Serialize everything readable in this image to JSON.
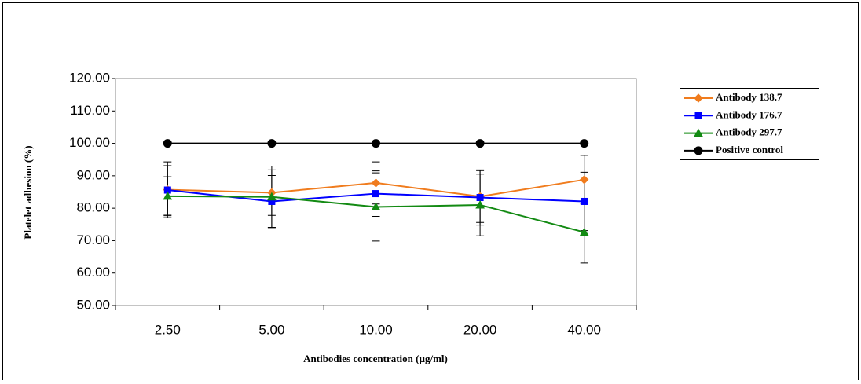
{
  "chart_data": {
    "type": "line",
    "x_label": "Antibodies concentration (µg/ml)",
    "y_label": "Platelet adhesion (%)",
    "categories": [
      "2.50",
      "5.00",
      "10.00",
      "20.00",
      "40.00"
    ],
    "series": [
      {
        "name": "Antibody 138.7",
        "color": "#f07c1e",
        "marker": "diamond",
        "values": [
          85.7,
          84.8,
          87.8,
          83.6,
          88.8
        ],
        "errors": [
          8.6,
          7.0,
          6.5,
          8.0,
          7.5
        ]
      },
      {
        "name": "Antibody 176.7",
        "color": "#0000ff",
        "marker": "square",
        "values": [
          85.6,
          82.1,
          84.5,
          83.3,
          82.1
        ],
        "errors": [
          7.5,
          8.0,
          7.0,
          8.5,
          9.0
        ]
      },
      {
        "name": "Antibody 297.7",
        "color": "#138a13",
        "marker": "triangle",
        "values": [
          83.7,
          83.5,
          80.4,
          81.0,
          72.6
        ],
        "errors": [
          6.0,
          9.5,
          10.5,
          9.5,
          9.5
        ]
      },
      {
        "name": "Positive control",
        "color": "#000000",
        "marker": "circle",
        "values": [
          100,
          100,
          100,
          100,
          100
        ]
      }
    ],
    "ylim": [
      50,
      120
    ],
    "yticks": [
      {
        "value": 50,
        "label": "50.00"
      },
      {
        "value": 60,
        "label": "60.00"
      },
      {
        "value": 70,
        "label": "70.00"
      },
      {
        "value": 80,
        "label": "80.00"
      },
      {
        "value": 90,
        "label": "90.00"
      },
      {
        "value": 100,
        "label": "100.00"
      },
      {
        "value": 110,
        "label": "110.00"
      },
      {
        "value": 120,
        "label": "120.00"
      }
    ],
    "legend": "right"
  }
}
